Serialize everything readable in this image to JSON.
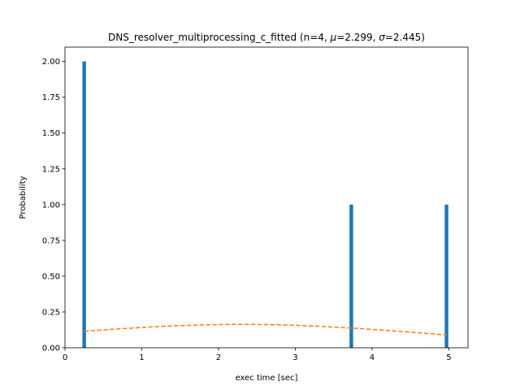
{
  "chart_data": {
    "type": "bar",
    "title_prefix": "DNS_resolver_multiprocessing_c_fitted (n=4, ",
    "title_mu_symbol": "μ",
    "title_mu_value": "=2.299, ",
    "title_sigma_symbol": "σ",
    "title_sigma_value": "=2.445)",
    "xlabel": "exec time [sec]",
    "ylabel": "Probability",
    "xlim": [
      0.0,
      5.25
    ],
    "ylim": [
      0.0,
      2.1
    ],
    "xticks": [
      0,
      1,
      2,
      3,
      4,
      5
    ],
    "xtick_labels": [
      "0",
      "1",
      "2",
      "3",
      "4",
      "5"
    ],
    "yticks": [
      0.0,
      0.25,
      0.5,
      0.75,
      1.0,
      1.25,
      1.5,
      1.75,
      2.0
    ],
    "ytick_labels": [
      "0.00",
      "0.25",
      "0.50",
      "0.75",
      "1.00",
      "1.25",
      "1.50",
      "1.75",
      "2.00"
    ],
    "bar_color": "#1f77b4",
    "bar_width": 0.047,
    "bars": [
      {
        "x": 0.25,
        "value": 2.0
      },
      {
        "x": 3.73,
        "value": 1.0
      },
      {
        "x": 4.97,
        "value": 1.0
      }
    ],
    "fit": {
      "type": "normal-pdf",
      "mu": 2.299,
      "sigma": 2.445,
      "x_range": [
        0.25,
        4.97
      ],
      "color": "#ff7f0e",
      "style": "dashed"
    }
  }
}
